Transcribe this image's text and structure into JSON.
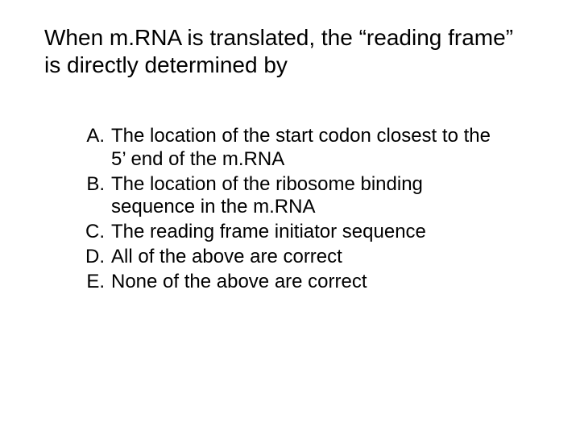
{
  "slide": {
    "background_color": "#ffffff",
    "text_color": "#000000",
    "question": {
      "text": "When m.RNA is translated, the “reading frame” is directly determined by",
      "font_size": 28,
      "font_family": "Arial"
    },
    "options": {
      "font_size": 24,
      "items": [
        {
          "letter": "A.",
          "text": "The location of the start codon closest to the 5’ end of the m.RNA"
        },
        {
          "letter": "B.",
          "text": "The location of the ribosome binding sequence in the m.RNA"
        },
        {
          "letter": "C.",
          "text": "The reading frame initiator sequence"
        },
        {
          "letter": "D.",
          "text": "All of the above are correct"
        },
        {
          "letter": "E.",
          "text": "None of the above are correct"
        }
      ]
    }
  }
}
